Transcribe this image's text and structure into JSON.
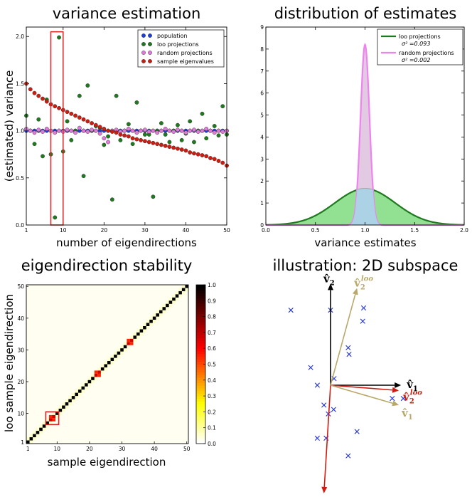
{
  "chart_data": [
    {
      "id": "variance-estimation",
      "type": "scatter",
      "title": "variance estimation",
      "xlabel": "number of eigendirections",
      "ylabel": "(estimated) variance",
      "xlim": [
        1,
        50
      ],
      "ylim": [
        0.0,
        2.1
      ],
      "xticks": [
        1,
        10,
        20,
        30,
        40,
        50
      ],
      "yticks": [
        0.0,
        0.5,
        1.0,
        1.5,
        2.0
      ],
      "ytick_labels": [
        "0.0",
        "0.5",
        "1.0",
        "1.5",
        "2.0"
      ],
      "legend_position": "top-right",
      "highlight": {
        "x_range": [
          7,
          10
        ],
        "y_range": [
          0.0,
          2.05
        ],
        "color": "#e02020"
      },
      "series": [
        {
          "name": "population",
          "color": "#1f3fd6",
          "x": [
            1,
            2,
            3,
            4,
            5,
            6,
            7,
            8,
            9,
            10,
            11,
            12,
            13,
            14,
            15,
            16,
            17,
            18,
            19,
            20,
            21,
            22,
            23,
            24,
            25,
            26,
            27,
            28,
            29,
            30,
            31,
            32,
            33,
            34,
            35,
            36,
            37,
            38,
            39,
            40,
            41,
            42,
            43,
            44,
            45,
            46,
            47,
            48,
            49,
            50
          ],
          "y": [
            1,
            1,
            1,
            1,
            1,
            1,
            1,
            1,
            1,
            1,
            1,
            1,
            1,
            1,
            1,
            1,
            1,
            1,
            1,
            1,
            1,
            1,
            1,
            1,
            1,
            1,
            1,
            1,
            1,
            1,
            1,
            1,
            1,
            1,
            1,
            1,
            1,
            1,
            1,
            1,
            1,
            1,
            1,
            1,
            1,
            1,
            1,
            1,
            1,
            1
          ]
        },
        {
          "name": "loo projections",
          "color": "#1f7a1f",
          "x": [
            1,
            2,
            3,
            4,
            5,
            6,
            7,
            8,
            9,
            10,
            11,
            12,
            13,
            14,
            15,
            16,
            17,
            18,
            19,
            20,
            21,
            22,
            23,
            24,
            25,
            26,
            27,
            28,
            29,
            30,
            31,
            32,
            33,
            34,
            35,
            36,
            37,
            38,
            39,
            40,
            41,
            42,
            43,
            44,
            45,
            46,
            47,
            48,
            49,
            50
          ],
          "y": [
            1.16,
            1.0,
            0.86,
            1.12,
            0.73,
            1.33,
            0.75,
            0.08,
            1.99,
            0.78,
            1.1,
            0.9,
            1.0,
            1.37,
            0.52,
            1.48,
            1.0,
            1.05,
            1.03,
            0.85,
            0.94,
            0.27,
            1.37,
            0.9,
            1.0,
            1.07,
            0.86,
            1.3,
            1.0,
            0.96,
            0.96,
            0.3,
            1.0,
            1.08,
            0.96,
            0.88,
            1.0,
            1.06,
            0.9,
            0.97,
            1.1,
            0.88,
            1.0,
            1.18,
            0.92,
            1.0,
            1.05,
            0.95,
            1.26,
            0.96
          ]
        },
        {
          "name": "random projections",
          "color": "#e07ad8",
          "x": [
            1,
            2,
            3,
            4,
            5,
            6,
            7,
            8,
            9,
            10,
            11,
            12,
            13,
            14,
            15,
            16,
            17,
            18,
            19,
            20,
            21,
            22,
            23,
            24,
            25,
            26,
            27,
            28,
            29,
            30,
            31,
            32,
            33,
            34,
            35,
            36,
            37,
            38,
            39,
            40,
            41,
            42,
            43,
            44,
            45,
            46,
            47,
            48,
            49,
            50
          ],
          "y": [
            1.02,
            1.0,
            0.98,
            1.01,
            0.99,
            1.02,
            1.0,
            0.98,
            1.0,
            0.99,
            1.01,
            1.0,
            0.98,
            1.03,
            1.0,
            0.99,
            1.01,
            1.0,
            0.97,
            0.92,
            0.88,
            1.0,
            1.01,
            0.99,
            1.0,
            1.02,
            1.0,
            0.98,
            1.0,
            1.01,
            0.99,
            1.0,
            0.98,
            1.0,
            1.02,
            1.0,
            0.99,
            1.01,
            1.0,
            0.98,
            1.0,
            1.01,
            0.99,
            1.0,
            1.02,
            1.0,
            0.98,
            1.0,
            0.99,
            1.0
          ]
        },
        {
          "name": "sample eigenvalues",
          "color": "#d01c10",
          "x": [
            1,
            2,
            3,
            4,
            5,
            6,
            7,
            8,
            9,
            10,
            11,
            12,
            13,
            14,
            15,
            16,
            17,
            18,
            19,
            20,
            21,
            22,
            23,
            24,
            25,
            26,
            27,
            28,
            29,
            30,
            31,
            32,
            33,
            34,
            35,
            36,
            37,
            38,
            39,
            40,
            41,
            42,
            43,
            44,
            45,
            46,
            47,
            48,
            49,
            50
          ],
          "y": [
            1.5,
            1.44,
            1.4,
            1.37,
            1.34,
            1.31,
            1.28,
            1.26,
            1.24,
            1.22,
            1.2,
            1.18,
            1.16,
            1.14,
            1.12,
            1.1,
            1.08,
            1.06,
            1.04,
            1.02,
            1.0,
            0.99,
            0.98,
            0.96,
            0.95,
            0.94,
            0.92,
            0.91,
            0.9,
            0.89,
            0.88,
            0.87,
            0.86,
            0.85,
            0.84,
            0.83,
            0.82,
            0.81,
            0.8,
            0.79,
            0.77,
            0.76,
            0.75,
            0.74,
            0.73,
            0.71,
            0.7,
            0.68,
            0.66,
            0.63
          ]
        }
      ]
    },
    {
      "id": "distribution-of-estimates",
      "type": "area",
      "title": "distribution of estimates",
      "xlabel": "variance estimates",
      "xlim": [
        0.0,
        2.0
      ],
      "ylim": [
        0,
        9
      ],
      "xticks": [
        0.0,
        0.5,
        1.0,
        1.5,
        2.0
      ],
      "xtick_labels": [
        "0.0",
        "0.5",
        "1.0",
        "1.5",
        "2.0"
      ],
      "yticks": [
        0,
        1,
        2,
        3,
        4,
        5,
        6,
        7,
        8,
        9
      ],
      "legend_position": "top-right",
      "series": [
        {
          "name": "loo projections",
          "stat": "σ² =0.093",
          "variance": 0.093,
          "mean": 1.0,
          "peak": 1.65,
          "color": "#1f7a1f",
          "fill": "#7fdc7f"
        },
        {
          "name": "random projections",
          "stat": "σ² =0.002",
          "variance": 0.002,
          "mean": 1.0,
          "peak": 8.2,
          "color": "#ee82ee",
          "fill": "#d9b8d9"
        }
      ]
    },
    {
      "id": "eigendirection-stability",
      "type": "heatmap",
      "title": "eigendirection stability",
      "xlabel": "sample eigendirection",
      "ylabel": "loo sample eigendirection",
      "xlim": [
        1,
        50
      ],
      "ylim": [
        1,
        50
      ],
      "xticks": [
        1,
        10,
        20,
        30,
        40,
        50
      ],
      "yticks": [
        1,
        10,
        20,
        30,
        40,
        50
      ],
      "colorbar": {
        "min": 0.0,
        "max": 1.0,
        "ticks": [
          "0.0",
          "0.1",
          "0.2",
          "0.3",
          "0.4",
          "0.5",
          "0.6",
          "0.7",
          "0.8",
          "0.9",
          "1.0"
        ]
      },
      "n": 50,
      "diagonal_value": 1.0,
      "swaps": [
        [
          8,
          9
        ],
        [
          22,
          23
        ],
        [
          32,
          33
        ]
      ],
      "swap_strength": 0.55,
      "highlight": {
        "x_range": [
          7,
          10
        ],
        "y_range": [
          7,
          10
        ],
        "color": "#e02020"
      }
    },
    {
      "id": "illustration-2d",
      "type": "scatter",
      "title": "illustration: 2D subspace",
      "points": [
        [
          -0.9,
          1.7
        ],
        [
          0.0,
          1.7
        ],
        [
          0.75,
          1.75
        ],
        [
          0.73,
          1.45
        ],
        [
          0.4,
          0.85
        ],
        [
          0.42,
          0.7
        ],
        [
          -0.45,
          0.4
        ],
        [
          0.08,
          0.15
        ],
        [
          -0.3,
          0.0
        ],
        [
          -0.15,
          -0.45
        ],
        [
          0.07,
          -0.55
        ],
        [
          -0.05,
          -0.65
        ],
        [
          -0.3,
          -1.2
        ],
        [
          -0.1,
          -1.2
        ],
        [
          0.6,
          -1.05
        ],
        [
          0.4,
          -1.6
        ],
        [
          1.4,
          -0.3
        ],
        [
          1.65,
          -0.3
        ]
      ],
      "vectors": [
        {
          "name": "v1",
          "label": "v̂",
          "sub": "1",
          "sup": "",
          "color": "#000000",
          "dx": 1.6,
          "dy": 0.0
        },
        {
          "name": "v2",
          "label": "v̂",
          "sub": "2",
          "sup": "",
          "color": "#000000",
          "dx": 0.0,
          "dy": 2.3
        },
        {
          "name": "v1-loo",
          "label": "v̂",
          "sub": "1",
          "sup": "loo",
          "color": "#d01c10",
          "dx": -0.15,
          "dy": -2.45
        },
        {
          "name": "v2-loo",
          "label": "v̂",
          "sub": "2",
          "sup": "loo",
          "color": "#d01c10",
          "dx": 1.55,
          "dy": -0.12
        },
        {
          "name": "v1-random",
          "label": "v̂",
          "sub": "1",
          "sup": "",
          "color": "#b8a86a",
          "dx": 1.55,
          "dy": -0.45
        },
        {
          "name": "v2-random",
          "label": "v̂",
          "sub": "2",
          "sup": "loo",
          "color": "#b8a86a",
          "dx": 0.6,
          "dy": 2.2
        }
      ]
    }
  ]
}
